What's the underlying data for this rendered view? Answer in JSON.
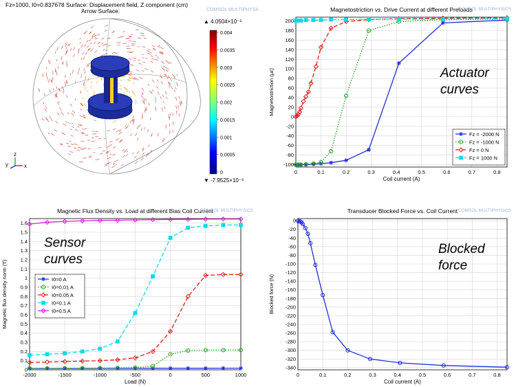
{
  "surface_plot": {
    "header_line1": "Fz=1000, I0=0.837678   Surface: Displacement field, Z component (cm)",
    "header_line2": "Arrow Surface:",
    "watermark": "COMSOL MULTIPHYSICS",
    "colorbar_max_label": "▲ 4.0504×10⁻³",
    "colorbar_min_label": "▼ -7.9525×10⁻⁸",
    "colorbar_ticks": [
      "0.004",
      "0.0035",
      "0.003",
      "0.0025",
      "0.002",
      "0.0015",
      "0.001",
      "0.0005",
      "0"
    ],
    "axis_y": "y",
    "axis_z": "z",
    "axis_x": "x",
    "colors": {
      "arrows": "#c83c28",
      "shape": "#1c2c9c"
    }
  },
  "chart_data": [
    {
      "type": "line",
      "title": "Magnetostriction vs. Drive Current at different Preloads",
      "xlabel": "Coil current (A)",
      "ylabel": "Magnetostriction (με)",
      "xlim": [
        0,
        0.84
      ],
      "ylim": [
        -105,
        208
      ],
      "xticks": [
        0,
        0.1,
        0.2,
        0.3,
        0.4,
        0.5,
        0.6,
        0.7,
        0.8
      ],
      "yticks": [
        -100,
        -80,
        -60,
        -40,
        -20,
        0,
        20,
        40,
        60,
        80,
        100,
        120,
        140,
        160,
        180,
        200
      ],
      "annotation": "Actuator curves",
      "legend_position": "bottom-right",
      "grid": true,
      "series": [
        {
          "name": "Fz = -2000 N",
          "color": "#1f2fd6",
          "dash": "solid",
          "marker": "star",
          "x": [
            0,
            0.01,
            0.02,
            0.04,
            0.07,
            0.1,
            0.14,
            0.2,
            0.29,
            0.41,
            0.585,
            0.84
          ],
          "y": [
            -100,
            -100,
            -100,
            -100,
            -99,
            -98,
            -96,
            -91,
            -69,
            112,
            196,
            202
          ]
        },
        {
          "name": "Fz = -1000 N",
          "color": "#22a022",
          "dash": "dotted",
          "marker": "circle",
          "x": [
            0,
            0.01,
            0.02,
            0.04,
            0.07,
            0.1,
            0.14,
            0.2,
            0.29,
            0.41,
            0.585,
            0.84
          ],
          "y": [
            -100,
            -100,
            -100,
            -99,
            -98,
            -95,
            -72,
            44,
            180,
            199,
            203,
            204
          ]
        },
        {
          "name": "Fz = 0 N",
          "color": "#e0201c",
          "dash": "dashed",
          "marker": "diamond",
          "x": [
            0,
            0.005,
            0.01,
            0.015,
            0.02,
            0.03,
            0.04,
            0.05,
            0.06,
            0.08,
            0.1,
            0.14,
            0.2,
            0.29,
            0.41,
            0.585,
            0.84
          ],
          "y": [
            0,
            2,
            5,
            10,
            18,
            32,
            42,
            52,
            70,
            105,
            145,
            185,
            199,
            203,
            205,
            206,
            207
          ]
        },
        {
          "name": "Fz = 1000 N",
          "color": "#12d8e8",
          "dash": "dashdot",
          "marker": "square",
          "x": [
            0,
            0.01,
            0.02,
            0.04,
            0.07,
            0.1,
            0.14,
            0.2,
            0.29,
            0.41,
            0.585,
            0.84
          ],
          "y": [
            201,
            201,
            201,
            202,
            202,
            202,
            203,
            203,
            204,
            204,
            204,
            205
          ]
        }
      ]
    },
    {
      "type": "line",
      "title": "Magnetic Flux Density vs. Load at different Bias Coil Current",
      "xlabel": "Load (N)",
      "ylabel": "Magnetic flux density norm (T)",
      "xlim": [
        -2000,
        1000
      ],
      "ylim": [
        0,
        1.65
      ],
      "xticks": [
        -2000,
        -1500,
        -1000,
        -500,
        0,
        500,
        1000
      ],
      "yticks": [
        0,
        0.1,
        0.2,
        0.3,
        0.4,
        0.5,
        0.6,
        0.7,
        0.8,
        0.9,
        1,
        1.1,
        1.2,
        1.3,
        1.4,
        1.5,
        1.6
      ],
      "annotation": "Sensor curves",
      "legend_position": "bottom-left",
      "grid": true,
      "series": [
        {
          "name": "I0=0 A",
          "color": "#1f2fd6",
          "dash": "solid",
          "marker": "star",
          "x": [
            -2000,
            -1750,
            -1500,
            -1250,
            -1000,
            -750,
            -500,
            -250,
            0,
            250,
            500,
            750,
            1000
          ],
          "y": [
            0.015,
            0.015,
            0.015,
            0.015,
            0.016,
            0.016,
            0.016,
            0.017,
            0.017,
            0.017,
            0.017,
            0.018,
            0.018
          ]
        },
        {
          "name": "I0=0.01 A",
          "color": "#22a022",
          "dash": "dotted",
          "marker": "circle",
          "x": [
            -2000,
            -1750,
            -1500,
            -1250,
            -1000,
            -750,
            -500,
            -250,
            0,
            250,
            500,
            750,
            1000
          ],
          "y": [
            0.015,
            0.016,
            0.017,
            0.018,
            0.019,
            0.021,
            0.025,
            0.04,
            0.17,
            0.21,
            0.215,
            0.215,
            0.215
          ]
        },
        {
          "name": "I0=0.05 A",
          "color": "#e0201c",
          "dash": "dashed",
          "marker": "diamond",
          "x": [
            -2000,
            -1750,
            -1500,
            -1250,
            -1000,
            -750,
            -500,
            -250,
            0,
            250,
            500,
            750,
            1000
          ],
          "y": [
            0.08,
            0.085,
            0.09,
            0.095,
            0.1,
            0.11,
            0.13,
            0.2,
            0.42,
            0.8,
            1.03,
            1.04,
            1.04
          ]
        },
        {
          "name": "I0=0.1 A",
          "color": "#12d8e8",
          "dash": "dashed",
          "marker": "square",
          "x": [
            -2000,
            -1750,
            -1500,
            -1250,
            -1000,
            -750,
            -500,
            -250,
            0,
            250,
            500,
            750,
            1000
          ],
          "y": [
            0.16,
            0.17,
            0.18,
            0.2,
            0.23,
            0.31,
            0.62,
            1.02,
            1.44,
            1.55,
            1.57,
            1.58,
            1.58
          ]
        },
        {
          "name": "I0=0.5 A",
          "color": "#e020e0",
          "dash": "solid",
          "marker": "diamond",
          "x": [
            -2000,
            -1750,
            -1500,
            -1250,
            -1000,
            -750,
            -500,
            -250,
            0,
            250,
            500,
            750,
            1000
          ],
          "y": [
            1.59,
            1.61,
            1.62,
            1.625,
            1.63,
            1.632,
            1.635,
            1.638,
            1.64,
            1.642,
            1.644,
            1.645,
            1.645
          ]
        }
      ]
    },
    {
      "type": "line",
      "title": "Transducer Blocked Force vs. Coil Current",
      "xlabel": "Coil current (A)",
      "ylabel": "Blocked force (N)",
      "xlim": [
        0,
        0.84
      ],
      "ylim": [
        -345,
        5
      ],
      "xticks": [
        0,
        0.1,
        0.2,
        0.3,
        0.4,
        0.5,
        0.6,
        0.7,
        0.8
      ],
      "yticks": [
        0,
        -20,
        -40,
        -60,
        -80,
        -100,
        -120,
        -140,
        -160,
        -180,
        -200,
        -220,
        -240,
        -260,
        -280,
        -300,
        -320,
        -340
      ],
      "annotation": "Blocked force",
      "grid": true,
      "series": [
        {
          "color": "#1f2fd6",
          "dash": "solid",
          "marker": "circle",
          "x": [
            0,
            0.005,
            0.01,
            0.015,
            0.02,
            0.03,
            0.04,
            0.05,
            0.07,
            0.1,
            0.14,
            0.2,
            0.29,
            0.41,
            0.585,
            0.84
          ],
          "y": [
            0,
            -1,
            -2,
            -4,
            -8,
            -17,
            -30,
            -52,
            -102,
            -172,
            -258,
            -300,
            -320,
            -329,
            -335,
            -339
          ]
        }
      ]
    }
  ]
}
